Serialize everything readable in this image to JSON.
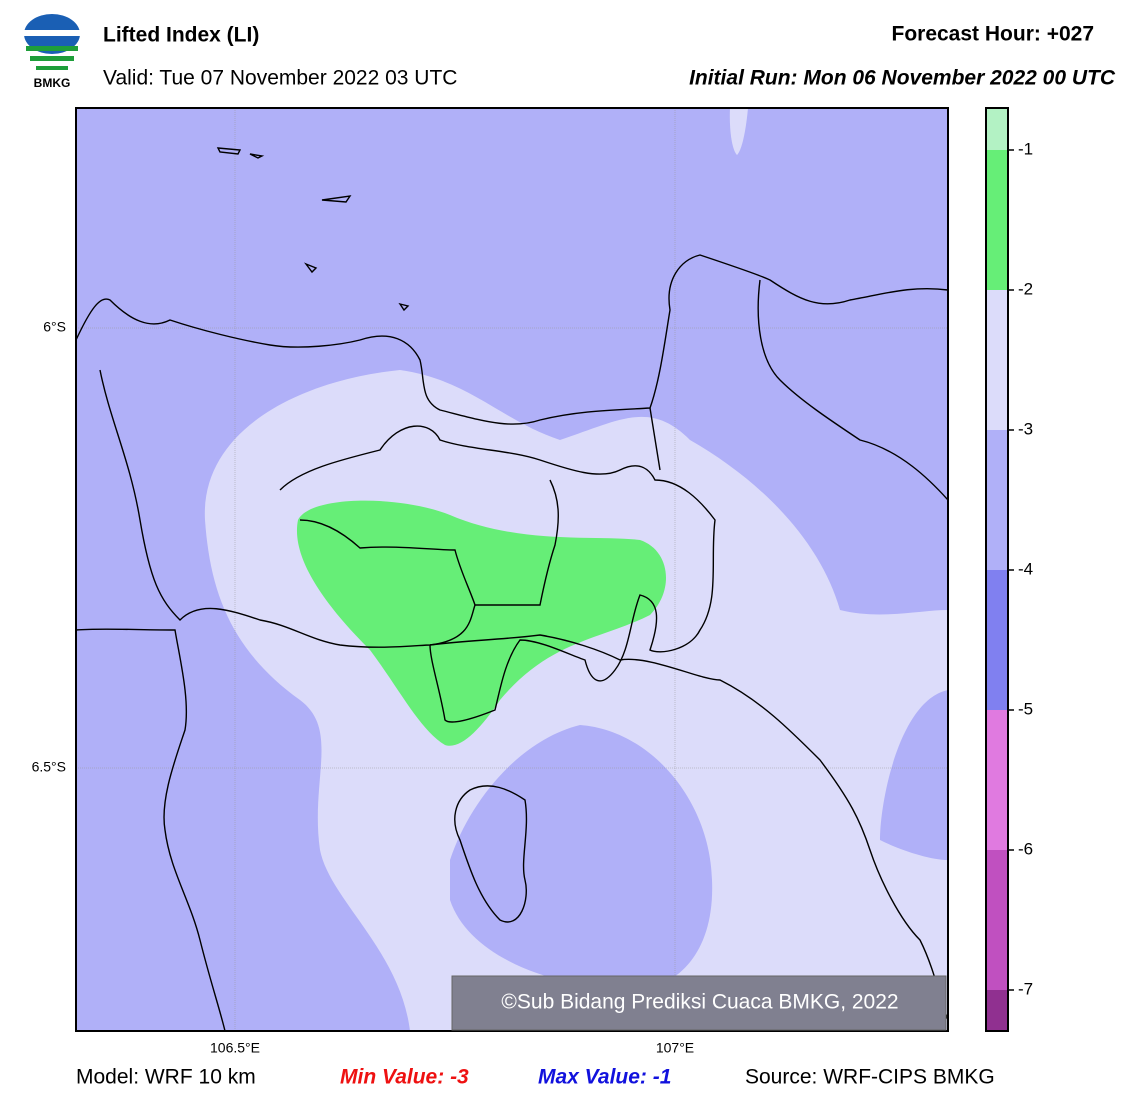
{
  "header": {
    "logo_text": "BMKG",
    "title": "Lifted Index (LI)",
    "valid": "Valid: Tue 07 November 2022 03 UTC",
    "forecast_hour": "Forecast Hour: +027",
    "initial_run": "Initial Run: Mon 06 November 2022 00 UTC"
  },
  "map": {
    "lat_labels": [
      "6°S",
      "6.5°S"
    ],
    "lon_labels": [
      "106.5°E",
      "107°E"
    ],
    "watermark": "©Sub Bidang Prediksi Cuaca BMKG, 2022"
  },
  "colorbar": {
    "ticks": [
      -1,
      -2,
      -3,
      -4,
      -5,
      -6,
      -7
    ],
    "colors": [
      "#b3f2c4",
      "#66ee77",
      "#dcdcfa",
      "#b0b0f8",
      "#8080f0",
      "#e07ae0",
      "#c050c0",
      "#903090"
    ]
  },
  "footer": {
    "model": "Model: WRF 10 km",
    "min": "Min Value: -3",
    "max": "Max Value: -1",
    "source": "Source: WRF-CIPS BMKG"
  }
}
